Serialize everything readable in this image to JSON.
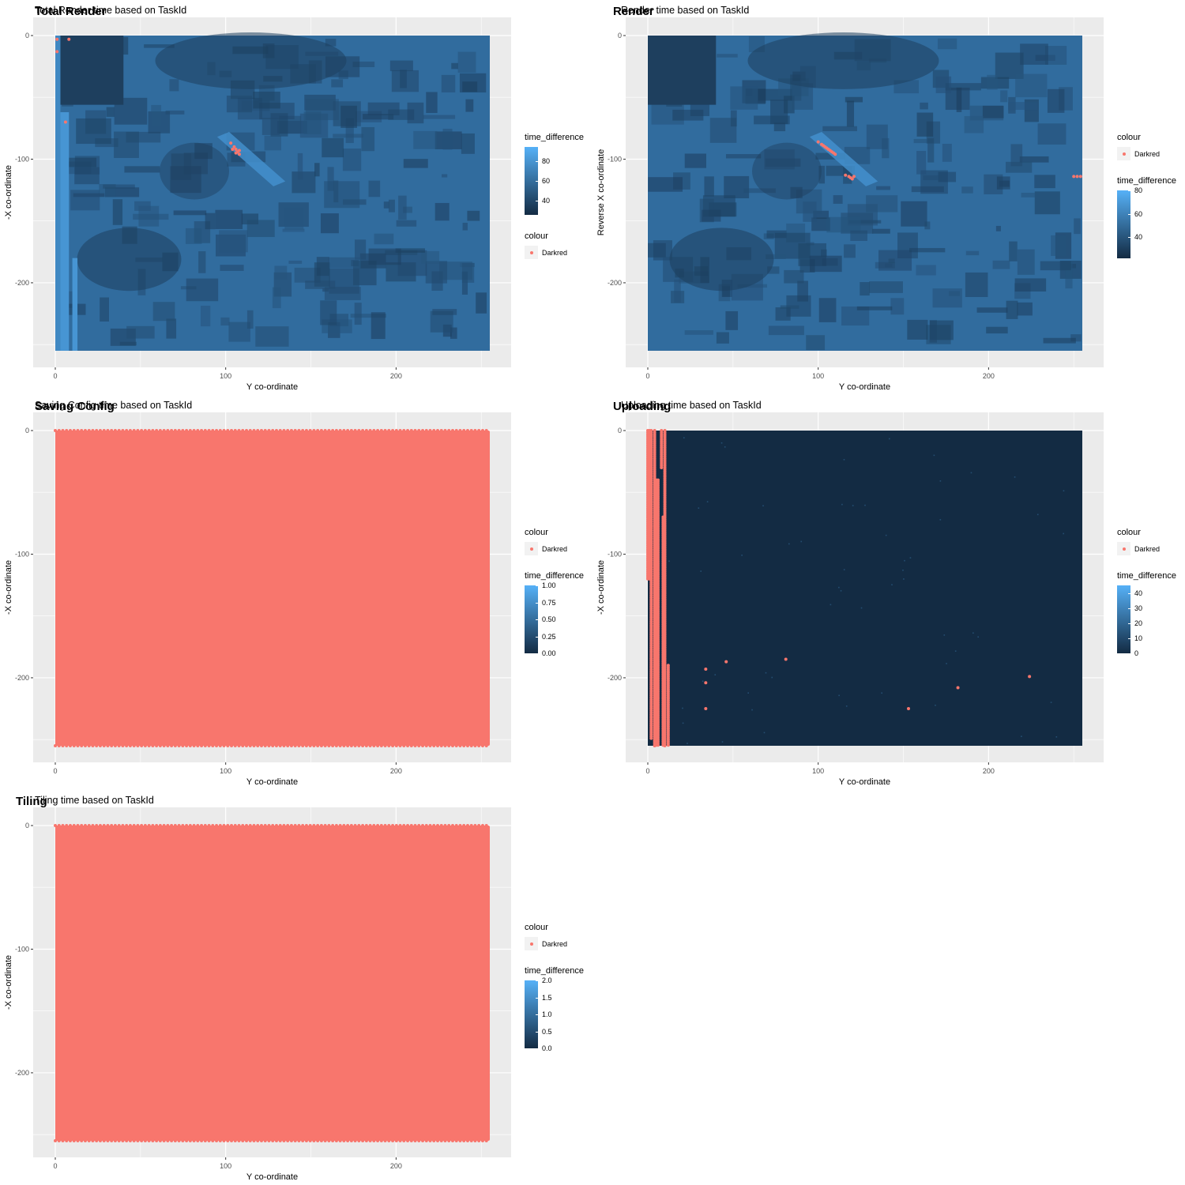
{
  "colors": {
    "panel_bg": "#EBEBEB",
    "grid": "#FFFFFF",
    "tile_fill": "#316C9E",
    "tile_fill_dark": "#1E3F5E",
    "darkred_point": "#F8766D",
    "gradient_low": "#132B43",
    "gradient_high": "#56B1F7"
  },
  "panels": [
    {
      "title": "Total Render",
      "subtitle": "Total Render time based on TaskId",
      "ylabel": "-X co-ordinate",
      "legend_order": [
        "time_difference",
        "colour"
      ],
      "colour_legend": {
        "title": "colour",
        "key": "Darkred"
      },
      "gradient_legend": {
        "title": "time_difference",
        "ticks": [
          "40",
          "60",
          "80"
        ]
      },
      "chart_data": {
        "type": "heatmap",
        "xlabel": "Y co-ordinate",
        "ylabel": "-X co-ordinate",
        "xlim": [
          0,
          255
        ],
        "ylim": [
          -255,
          0
        ],
        "xticks": [
          "0",
          "100",
          "200"
        ],
        "yticks": [
          "0",
          "-100",
          "-200"
        ],
        "fill_variable": "time_difference",
        "fill_range": [
          25,
          95
        ],
        "fill_scale": "gradient",
        "highlight_series": "Darkred",
        "highlight_points": [
          [
            1,
            -3
          ],
          [
            8,
            -3
          ],
          [
            1,
            -13
          ],
          [
            6,
            -70
          ],
          [
            103,
            -87
          ],
          [
            105,
            -90
          ],
          [
            104,
            -92
          ],
          [
            106,
            -92
          ],
          [
            107,
            -94
          ],
          [
            108,
            -93
          ],
          [
            106,
            -95
          ],
          [
            108,
            -96
          ]
        ]
      }
    },
    {
      "title": "Render",
      "subtitle": "Render time based on TaskId",
      "ylabel": "Reverse X co-ordinate",
      "legend_order": [
        "colour",
        "time_difference"
      ],
      "colour_legend": {
        "title": "colour",
        "key": "Darkred"
      },
      "gradient_legend": {
        "title": "time_difference",
        "ticks": [
          "40",
          "60",
          "80"
        ]
      },
      "chart_data": {
        "type": "heatmap",
        "xlabel": "Y co-ordinate",
        "ylabel": "Reverse X co-ordinate",
        "xlim": [
          0,
          255
        ],
        "ylim": [
          -255,
          0
        ],
        "xticks": [
          "0",
          "100",
          "200"
        ],
        "yticks": [
          "0",
          "-100",
          "-200"
        ],
        "fill_variable": "time_difference",
        "fill_range": [
          22,
          80
        ],
        "fill_scale": "gradient",
        "highlight_series": "Darkred",
        "highlight_points": [
          [
            100,
            -86
          ],
          [
            102,
            -88
          ],
          [
            103,
            -89
          ],
          [
            104,
            -90
          ],
          [
            105,
            -91
          ],
          [
            106,
            -92
          ],
          [
            107,
            -93
          ],
          [
            108,
            -94
          ],
          [
            109,
            -95
          ],
          [
            110,
            -96
          ],
          [
            116,
            -113
          ],
          [
            118,
            -114
          ],
          [
            119,
            -115
          ],
          [
            120,
            -116
          ],
          [
            121,
            -114
          ],
          [
            250,
            -114
          ],
          [
            252,
            -114
          ],
          [
            254,
            -114
          ]
        ]
      }
    },
    {
      "title": "Saving Config",
      "subtitle": "Saving Config time based on TaskId",
      "ylabel": "-X co-ordinate",
      "legend_order": [
        "colour",
        "time_difference"
      ],
      "colour_legend": {
        "title": "colour",
        "key": "Darkred"
      },
      "gradient_legend": {
        "title": "time_difference",
        "ticks": [
          "0.00",
          "0.25",
          "0.50",
          "0.75",
          "1.00"
        ]
      },
      "chart_data": {
        "type": "heatmap",
        "xlabel": "Y co-ordinate",
        "ylabel": "-X co-ordinate",
        "xlim": [
          0,
          255
        ],
        "ylim": [
          -255,
          0
        ],
        "xticks": [
          "0",
          "100",
          "200"
        ],
        "yticks": [
          "0",
          "-100",
          "-200"
        ],
        "fill_variable": "time_difference",
        "fill_range": [
          0,
          1
        ],
        "fill_scale": "gradient",
        "highlight_series": "Darkred",
        "highlight_all": true
      }
    },
    {
      "title": "Uploading",
      "subtitle": "Uploading time based on TaskId",
      "ylabel": "-X co-ordinate",
      "legend_order": [
        "colour",
        "time_difference"
      ],
      "colour_legend": {
        "title": "colour",
        "key": "Darkred"
      },
      "gradient_legend": {
        "title": "time_difference",
        "ticks": [
          "0",
          "10",
          "20",
          "30",
          "40"
        ]
      },
      "chart_data": {
        "type": "heatmap",
        "xlabel": "Y co-ordinate",
        "ylabel": "-X co-ordinate",
        "xlim": [
          0,
          255
        ],
        "ylim": [
          -255,
          0
        ],
        "xticks": [
          "0",
          "100",
          "200"
        ],
        "yticks": [
          "0",
          "-100",
          "-200"
        ],
        "fill_variable": "time_difference",
        "fill_range": [
          0,
          45
        ],
        "fill_scale": "gradient",
        "highlight_series": "Darkred",
        "highlight_columns": [
          [
            0,
            0,
            -120
          ],
          [
            1,
            0,
            -120
          ],
          [
            2,
            0,
            -250
          ],
          [
            4,
            0,
            -255
          ],
          [
            5,
            -40,
            -255
          ],
          [
            6,
            -40,
            -255
          ],
          [
            8,
            0,
            -30
          ],
          [
            9,
            -70,
            -255
          ],
          [
            10,
            0,
            -255
          ],
          [
            12,
            -190,
            -255
          ]
        ],
        "highlight_points": [
          [
            34,
            -193
          ],
          [
            34,
            -204
          ],
          [
            34,
            -225
          ],
          [
            46,
            -187
          ],
          [
            81,
            -185
          ],
          [
            153,
            -225
          ],
          [
            182,
            -208
          ],
          [
            224,
            -199
          ]
        ]
      }
    },
    {
      "title": "Tiling",
      "subtitle": "Tiling time based on TaskId",
      "ylabel": "-X co-ordinate",
      "legend_order": [
        "colour",
        "time_difference"
      ],
      "colour_legend": {
        "title": "colour",
        "key": "Darkred"
      },
      "gradient_legend": {
        "title": "time_difference",
        "ticks": [
          "0.0",
          "0.5",
          "1.0",
          "1.5",
          "2.0"
        ]
      },
      "chart_data": {
        "type": "heatmap",
        "xlabel": "Y co-ordinate",
        "ylabel": "-X co-ordinate",
        "xlim": [
          0,
          255
        ],
        "ylim": [
          -255,
          0
        ],
        "xticks": [
          "0",
          "100",
          "200"
        ],
        "yticks": [
          "0",
          "-100",
          "-200"
        ],
        "fill_variable": "time_difference",
        "fill_range": [
          0,
          2
        ],
        "fill_scale": "gradient",
        "highlight_series": "Darkred",
        "highlight_all": true
      }
    }
  ]
}
